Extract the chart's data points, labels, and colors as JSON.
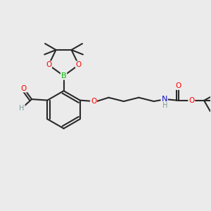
{
  "bg_color": "#ebebeb",
  "bond_color": "#2a2a2a",
  "bond_width": 1.5,
  "atom_colors": {
    "O": "#ff0000",
    "B": "#00bb00",
    "N": "#1111cc",
    "C": "#2a2a2a",
    "H": "#7a9a9a"
  },
  "figsize": [
    3.0,
    3.0
  ],
  "dpi": 100
}
